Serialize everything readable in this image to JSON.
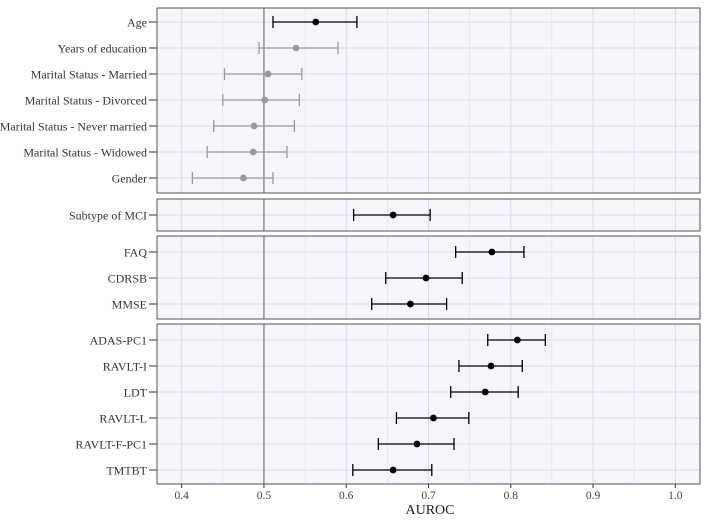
{
  "chart_data": {
    "type": "forest",
    "xlabel": "AUROC",
    "xlim": [
      0.37,
      1.03
    ],
    "xticks": [
      0.4,
      0.5,
      0.6,
      0.7,
      0.8,
      0.9,
      1.0
    ],
    "xtick_labels": [
      "0.4",
      "0.5",
      "0.6",
      "0.7",
      "0.8",
      "0.9",
      "1.0"
    ],
    "reference_line": 0.5,
    "grid": true,
    "colors": {
      "significant": "#000000",
      "not_significant": "#9a9a9a",
      "panel_background": "#f5f5fc",
      "gridline": "#dcdce6",
      "panel_border": "#555555"
    },
    "panels": [
      {
        "rows": [
          {
            "label": "Age",
            "estimate": 0.563,
            "lower": 0.511,
            "upper": 0.613,
            "significant": true
          },
          {
            "label": "Years of education",
            "estimate": 0.539,
            "lower": 0.494,
            "upper": 0.59,
            "significant": false
          },
          {
            "label": "Marital Status - Married",
            "estimate": 0.505,
            "lower": 0.452,
            "upper": 0.546,
            "significant": false
          },
          {
            "label": "Marital Status - Divorced",
            "estimate": 0.501,
            "lower": 0.45,
            "upper": 0.543,
            "significant": false
          },
          {
            "label": "Marital Status - Never married",
            "estimate": 0.488,
            "lower": 0.439,
            "upper": 0.537,
            "significant": false
          },
          {
            "label": "Marital Status - Widowed",
            "estimate": 0.487,
            "lower": 0.431,
            "upper": 0.528,
            "significant": false
          },
          {
            "label": "Gender",
            "estimate": 0.475,
            "lower": 0.413,
            "upper": 0.511,
            "significant": false
          }
        ]
      },
      {
        "rows": [
          {
            "label": "Subtype of MCI",
            "estimate": 0.657,
            "lower": 0.609,
            "upper": 0.702,
            "significant": true
          }
        ]
      },
      {
        "rows": [
          {
            "label": "FAQ",
            "estimate": 0.777,
            "lower": 0.733,
            "upper": 0.816,
            "significant": true
          },
          {
            "label": "CDRSB",
            "estimate": 0.697,
            "lower": 0.648,
            "upper": 0.741,
            "significant": true
          },
          {
            "label": "MMSE",
            "estimate": 0.678,
            "lower": 0.631,
            "upper": 0.722,
            "significant": true
          }
        ]
      },
      {
        "rows": [
          {
            "label": "ADAS-PC1",
            "estimate": 0.808,
            "lower": 0.772,
            "upper": 0.842,
            "significant": true
          },
          {
            "label": "RAVLT-I",
            "estimate": 0.776,
            "lower": 0.737,
            "upper": 0.814,
            "significant": true
          },
          {
            "label": "LDT",
            "estimate": 0.769,
            "lower": 0.727,
            "upper": 0.809,
            "significant": true
          },
          {
            "label": "RAVLT-L",
            "estimate": 0.706,
            "lower": 0.661,
            "upper": 0.749,
            "significant": true
          },
          {
            "label": "RAVLT-F-PC1",
            "estimate": 0.686,
            "lower": 0.639,
            "upper": 0.731,
            "significant": true
          },
          {
            "label": "TMTBT",
            "estimate": 0.657,
            "lower": 0.608,
            "upper": 0.704,
            "significant": true
          }
        ]
      }
    ]
  }
}
